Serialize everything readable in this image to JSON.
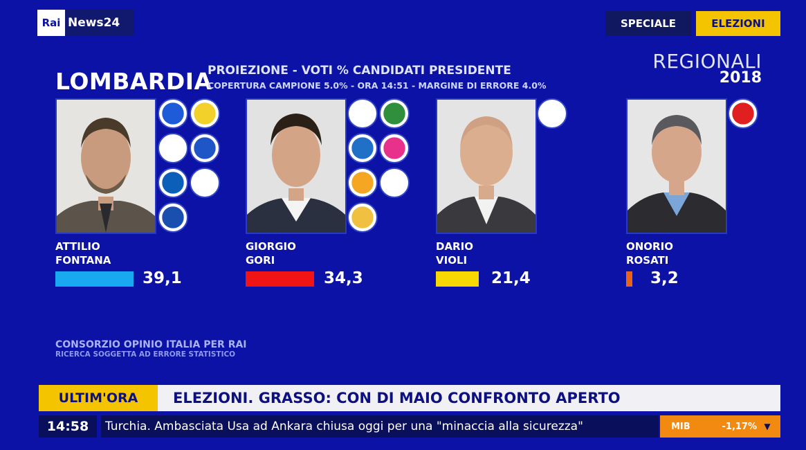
{
  "logo": {
    "rai": "Rai",
    "news": "News24"
  },
  "tags": {
    "speciale": "SPECIALE",
    "elezioni": "ELEZIONI"
  },
  "election": {
    "type": "REGIONALI",
    "year": "2018"
  },
  "header": {
    "region": "LOMBARDIA",
    "title": "PROIEZIONE - VOTI % CANDIDATI PRESIDENTE",
    "subtitle": "COPERTURA CAMPIONE 5.0% - ORA 14:51 - MARGINE DI ERRORE 4.0%"
  },
  "chart_data": {
    "type": "bar",
    "categories": [
      "ATTILIO FONTANA",
      "GIORGIO GORI",
      "DARIO VIOLI",
      "ONORIO ROSATI"
    ],
    "values": [
      39.1,
      34.3,
      21.4,
      3.2
    ],
    "value_labels": [
      "39,1",
      "34,3",
      "21,4",
      "3,2"
    ]
  },
  "candidates": [
    {
      "first": "ATTILIO",
      "last": "FONTANA",
      "pct": "39,1",
      "value": 39.1,
      "color": "#19a9f0",
      "logos": [
        "#1d5bd8",
        "#f2d22a",
        "#ffffff",
        "#1e56c8",
        "#0c5fb8",
        "#ffffff",
        "#1a4fb0"
      ]
    },
    {
      "first": "GIORGIO",
      "last": "GORI",
      "pct": "34,3",
      "value": 34.3,
      "color": "#f01414",
      "logos": [
        "#ffffff",
        "#2f8f3c",
        "#2070c8",
        "#e8318a",
        "#f5a623",
        "#ffffff",
        "#f0c040"
      ]
    },
    {
      "first": "DARIO",
      "last": "VIOLI",
      "pct": "21,4",
      "value": 21.4,
      "color": "#f7d800",
      "logos": [
        "#ffffff"
      ]
    },
    {
      "first": "ONORIO",
      "last": "ROSATI",
      "pct": "3,2",
      "value": 3.2,
      "color": "#e8641a",
      "logos": [
        "#e02020"
      ]
    }
  ],
  "source": {
    "line1": "CONSORZIO OPINIO ITALIA PER RAI",
    "line2": "RICERCA SOGGETTA AD ERRORE STATISTICO"
  },
  "ticker": {
    "label": "ULTIM'ORA",
    "headline": "ELEZIONI. GRASSO: CON DI MAIO CONFRONTO APERTO",
    "time": "14:58",
    "crawl": "Turchia. Ambasciata Usa ad Ankara chiusa oggi per una \"minaccia alla sicurezza\"",
    "market": {
      "name": "MIB",
      "value": "-1,17%"
    }
  }
}
